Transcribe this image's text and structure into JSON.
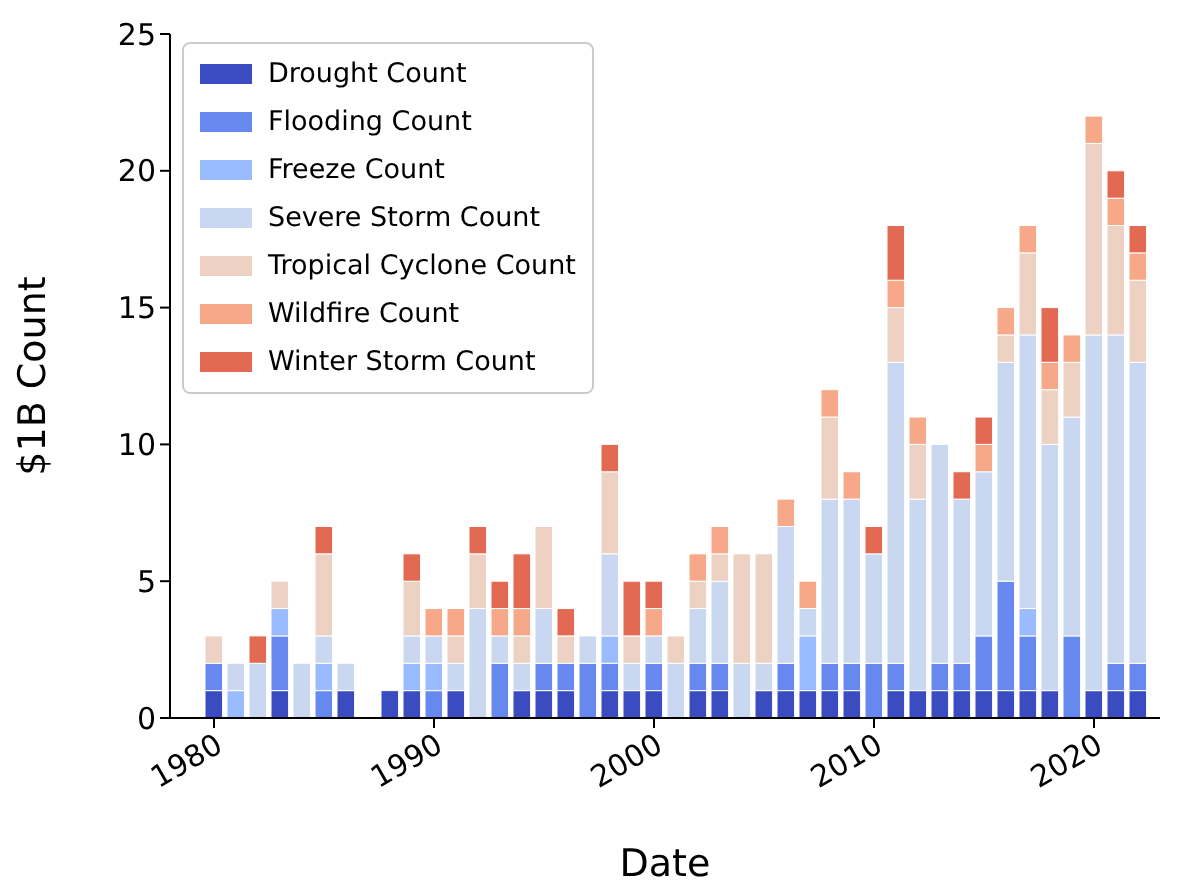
{
  "chart_data": {
    "type": "bar",
    "stacked": true,
    "xlabel": "Date",
    "ylabel": "$1B Count",
    "x": [
      1980,
      1981,
      1982,
      1983,
      1984,
      1985,
      1986,
      1987,
      1988,
      1989,
      1990,
      1991,
      1992,
      1993,
      1994,
      1995,
      1996,
      1997,
      1998,
      1999,
      2000,
      2001,
      2002,
      2003,
      2004,
      2005,
      2006,
      2007,
      2008,
      2009,
      2010,
      2011,
      2012,
      2013,
      2014,
      2015,
      2016,
      2017,
      2018,
      2019,
      2020,
      2021,
      2022
    ],
    "series": [
      {
        "name": "Drought Count",
        "color": "#3b4cc0",
        "values": [
          1,
          0,
          0,
          1,
          0,
          0,
          1,
          0,
          1,
          1,
          0,
          1,
          0,
          0,
          1,
          1,
          1,
          0,
          1,
          1,
          1,
          0,
          1,
          1,
          0,
          1,
          1,
          1,
          1,
          1,
          0,
          1,
          1,
          1,
          1,
          1,
          1,
          1,
          1,
          0,
          1,
          1,
          1
        ]
      },
      {
        "name": "Flooding Count",
        "color": "#6788ee",
        "values": [
          1,
          0,
          0,
          2,
          0,
          1,
          0,
          0,
          0,
          0,
          1,
          0,
          0,
          2,
          0,
          1,
          1,
          2,
          1,
          0,
          1,
          0,
          1,
          1,
          0,
          0,
          1,
          0,
          1,
          1,
          2,
          1,
          0,
          1,
          1,
          2,
          4,
          2,
          0,
          3,
          0,
          1,
          1
        ]
      },
      {
        "name": "Freeze Count",
        "color": "#9abbff",
        "values": [
          0,
          1,
          0,
          1,
          0,
          1,
          0,
          0,
          0,
          1,
          1,
          0,
          0,
          0,
          0,
          0,
          0,
          0,
          1,
          0,
          0,
          0,
          0,
          0,
          0,
          0,
          0,
          2,
          0,
          0,
          0,
          0,
          0,
          0,
          0,
          0,
          0,
          1,
          0,
          0,
          0,
          0,
          0
        ]
      },
      {
        "name": "Severe Storm Count",
        "color": "#c9d7f0",
        "values": [
          0,
          1,
          2,
          0,
          2,
          1,
          1,
          0,
          0,
          1,
          1,
          1,
          4,
          1,
          1,
          2,
          0,
          1,
          3,
          1,
          1,
          2,
          2,
          3,
          2,
          1,
          5,
          1,
          6,
          6,
          4,
          11,
          7,
          8,
          6,
          6,
          8,
          10,
          9,
          8,
          13,
          12,
          11
        ]
      },
      {
        "name": "Tropical Cyclone Count",
        "color": "#edd1c2",
        "values": [
          1,
          0,
          0,
          1,
          0,
          3,
          0,
          0,
          0,
          2,
          0,
          1,
          2,
          0,
          1,
          3,
          1,
          0,
          3,
          1,
          0,
          1,
          1,
          1,
          4,
          4,
          0,
          0,
          3,
          0,
          0,
          2,
          2,
          0,
          0,
          0,
          1,
          3,
          2,
          2,
          7,
          4,
          3
        ]
      },
      {
        "name": "Wildfire Count",
        "color": "#f7a889",
        "values": [
          0,
          0,
          0,
          0,
          0,
          0,
          0,
          0,
          0,
          0,
          1,
          1,
          0,
          1,
          1,
          0,
          0,
          0,
          0,
          0,
          1,
          0,
          1,
          1,
          0,
          0,
          1,
          1,
          1,
          1,
          0,
          1,
          1,
          0,
          0,
          1,
          1,
          1,
          1,
          1,
          1,
          1,
          1
        ]
      },
      {
        "name": "Winter Storm Count",
        "color": "#e26952",
        "values": [
          0,
          0,
          1,
          0,
          0,
          1,
          0,
          0,
          0,
          1,
          0,
          0,
          1,
          1,
          2,
          0,
          1,
          0,
          1,
          2,
          1,
          0,
          0,
          0,
          0,
          0,
          0,
          0,
          0,
          0,
          1,
          2,
          0,
          0,
          1,
          1,
          0,
          0,
          2,
          0,
          0,
          1,
          1
        ]
      }
    ],
    "xlim": [
      1978,
      2023
    ],
    "xticks": [
      1980,
      1990,
      2000,
      2010,
      2020
    ],
    "ylim": [
      0,
      25
    ],
    "yticks": [
      0,
      5,
      10,
      15,
      20,
      25
    ],
    "legend": "top left"
  }
}
